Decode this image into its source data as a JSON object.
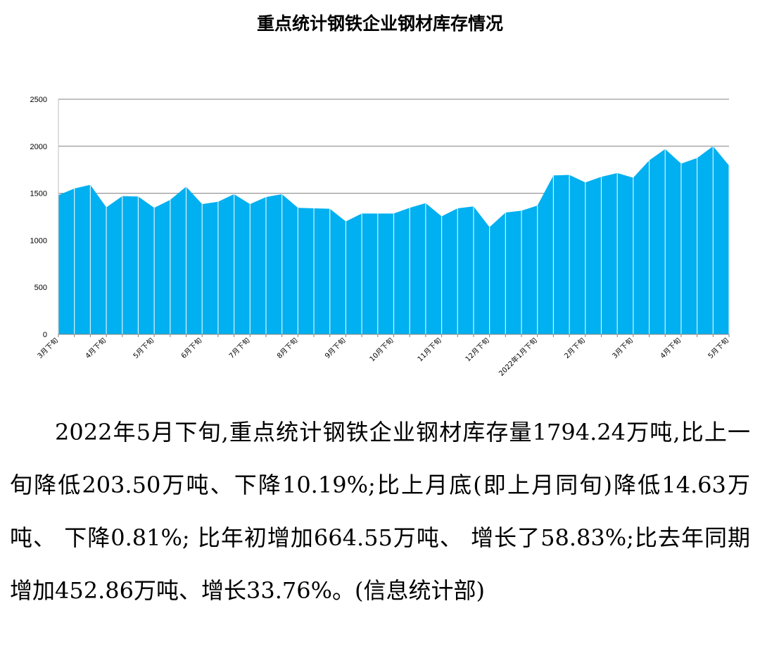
{
  "chart_data": {
    "type": "area",
    "title": "重点统计钢铁企业钢材库存情况",
    "xlabel": "",
    "ylabel": "",
    "ylim": [
      0,
      2500
    ],
    "yticks": [
      0,
      500,
      1000,
      1500,
      2000,
      2500
    ],
    "grid": true,
    "legend": "none",
    "color": "#00B0F0",
    "x_tick_labels": [
      {
        "index": 0,
        "label": "3月下旬"
      },
      {
        "index": 3,
        "label": "4月下旬"
      },
      {
        "index": 6,
        "label": "5月下旬"
      },
      {
        "index": 9,
        "label": "6月下旬"
      },
      {
        "index": 12,
        "label": "7月下旬"
      },
      {
        "index": 15,
        "label": "8月下旬"
      },
      {
        "index": 18,
        "label": "9月下旬"
      },
      {
        "index": 21,
        "label": "10月下旬"
      },
      {
        "index": 24,
        "label": "11月下旬"
      },
      {
        "index": 27,
        "label": "12月下旬"
      },
      {
        "index": 30,
        "label": "2022年1月下旬"
      },
      {
        "index": 33,
        "label": "2月下旬"
      },
      {
        "index": 36,
        "label": "3月下旬"
      },
      {
        "index": 39,
        "label": "4月下旬"
      },
      {
        "index": 42,
        "label": "5月下旬"
      }
    ],
    "values": [
      1480,
      1550,
      1590,
      1350,
      1470,
      1465,
      1345,
      1430,
      1570,
      1385,
      1410,
      1490,
      1385,
      1460,
      1490,
      1345,
      1340,
      1335,
      1200,
      1285,
      1285,
      1285,
      1345,
      1395,
      1255,
      1340,
      1360,
      1140,
      1295,
      1315,
      1370,
      1690,
      1695,
      1615,
      1675,
      1715,
      1665,
      1850,
      1970,
      1815,
      1875,
      2000,
      1795
    ]
  },
  "body_text": "2022年5月下旬,重点统计钢铁企业钢材库存量1794.24万吨,比上一旬降低203.50万吨、下降10.19%;比上月底(即上月同旬)降低14.63万吨、 下降0.81%; 比年初增加664.55万吨、 增长了58.83%;比去年同期增加452.86万吨、增长33.76%。(信息统计部)"
}
